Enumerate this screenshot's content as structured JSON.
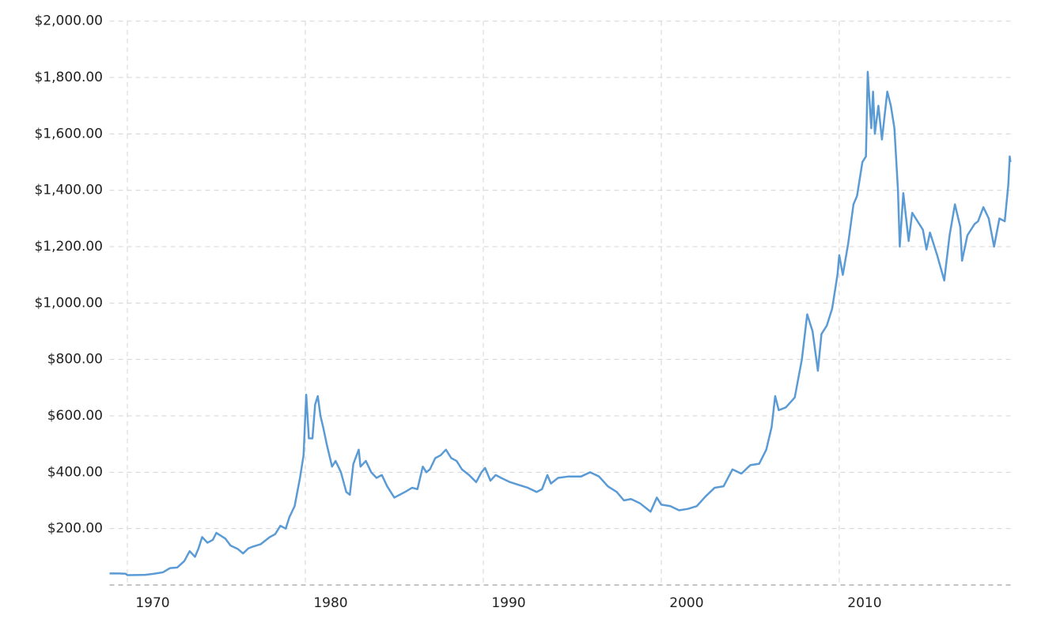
{
  "chart_data": {
    "type": "line",
    "x": [
      1969.0,
      1969.5,
      1969.9,
      1970.0,
      1970.5,
      1971.0,
      1971.5,
      1972.0,
      1972.4,
      1972.8,
      1973.2,
      1973.5,
      1973.8,
      1974.0,
      1974.2,
      1974.5,
      1974.8,
      1975.0,
      1975.5,
      1975.8,
      1976.2,
      1976.5,
      1976.8,
      1977.0,
      1977.5,
      1978.0,
      1978.3,
      1978.6,
      1978.9,
      1979.1,
      1979.4,
      1979.7,
      1979.9,
      1980.05,
      1980.2,
      1980.4,
      1980.55,
      1980.7,
      1980.85,
      1981.0,
      1981.2,
      1981.5,
      1981.7,
      1982.0,
      1982.3,
      1982.5,
      1982.7,
      1983.0,
      1983.1,
      1983.4,
      1983.7,
      1984.0,
      1984.3,
      1984.6,
      1985.0,
      1985.3,
      1985.6,
      1986.0,
      1986.3,
      1986.6,
      1986.8,
      1987.0,
      1987.3,
      1987.6,
      1987.9,
      1988.2,
      1988.5,
      1988.8,
      1989.2,
      1989.6,
      1989.9,
      1990.1,
      1990.4,
      1990.7,
      1991.0,
      1991.5,
      1992.0,
      1992.5,
      1993.0,
      1993.3,
      1993.6,
      1993.8,
      1994.2,
      1994.8,
      1995.5,
      1996.0,
      1996.5,
      1997.0,
      1997.5,
      1997.9,
      1998.3,
      1998.8,
      1999.4,
      1999.75,
      2000.0,
      2000.5,
      2001.0,
      2001.5,
      2002.0,
      2002.5,
      2003.0,
      2003.5,
      2004.0,
      2004.5,
      2005.0,
      2005.5,
      2005.9,
      2006.2,
      2006.4,
      2006.6,
      2007.0,
      2007.5,
      2007.9,
      2008.2,
      2008.5,
      2008.8,
      2009.0,
      2009.3,
      2009.6,
      2009.9,
      2010.0,
      2010.2,
      2010.5,
      2010.8,
      2011.0,
      2011.3,
      2011.5,
      2011.6,
      2011.8,
      2011.9,
      2012.0,
      2012.2,
      2012.4,
      2012.7,
      2012.9,
      2013.1,
      2013.3,
      2013.4,
      2013.6,
      2013.9,
      2014.1,
      2014.4,
      2014.7,
      2014.9,
      2015.1,
      2015.5,
      2015.9,
      2016.2,
      2016.5,
      2016.8,
      2016.9,
      2017.2,
      2017.6,
      2017.8,
      2018.1,
      2018.4,
      2018.7,
      2019.0,
      2019.3,
      2019.5,
      2019.58,
      2019.62
    ],
    "series": [
      {
        "color": "#5b9bd5",
        "values": [
          41,
          41,
          40,
          35,
          35.5,
          36,
          40,
          45,
          60,
          62,
          85,
          120,
          100,
          130,
          170,
          150,
          160,
          185,
          165,
          140,
          128,
          112,
          130,
          135,
          145,
          170,
          180,
          210,
          200,
          240,
          280,
          380,
          460,
          675,
          520,
          520,
          640,
          670,
          600,
          560,
          500,
          420,
          440,
          400,
          330,
          320,
          430,
          480,
          420,
          440,
          400,
          380,
          390,
          350,
          310,
          320,
          330,
          345,
          340,
          420,
          400,
          410,
          450,
          460,
          480,
          450,
          440,
          410,
          390,
          365,
          400,
          415,
          370,
          390,
          380,
          365,
          355,
          345,
          330,
          340,
          390,
          360,
          380,
          385,
          385,
          400,
          385,
          350,
          330,
          300,
          305,
          290,
          260,
          310,
          285,
          280,
          265,
          270,
          280,
          315,
          345,
          350,
          410,
          395,
          425,
          430,
          480,
          560,
          670,
          620,
          630,
          665,
          800,
          960,
          900,
          760,
          890,
          920,
          980,
          1100,
          1170,
          1100,
          1210,
          1350,
          1380,
          1500,
          1520,
          1820,
          1620,
          1750,
          1600,
          1700,
          1580,
          1750,
          1700,
          1620,
          1400,
          1200,
          1390,
          1220,
          1320,
          1290,
          1260,
          1190,
          1250,
          1170,
          1080,
          1240,
          1350,
          1270,
          1150,
          1240,
          1280,
          1290,
          1340,
          1300,
          1200,
          1300,
          1290,
          1420,
          1520,
          1500
        ]
      }
    ],
    "xlim": [
      1969.0,
      2019.65
    ],
    "xticks": [
      1970,
      1980,
      1990,
      2000,
      2010
    ],
    "ylim": [
      0,
      2000
    ],
    "yticks": [
      {
        "value": 200,
        "label": "$200.00"
      },
      {
        "value": 400,
        "label": "$400.00"
      },
      {
        "value": 600,
        "label": "$600.00"
      },
      {
        "value": 800,
        "label": "$800.00"
      },
      {
        "value": 1000,
        "label": "$1,000.00"
      },
      {
        "value": 1200,
        "label": "$1,200.00"
      },
      {
        "value": 1400,
        "label": "$1,400.00"
      },
      {
        "value": 1600,
        "label": "$1,600.00"
      },
      {
        "value": 1800,
        "label": "$1,800.00"
      },
      {
        "value": 2000,
        "label": "$2,000.00"
      }
    ],
    "grid": true
  }
}
